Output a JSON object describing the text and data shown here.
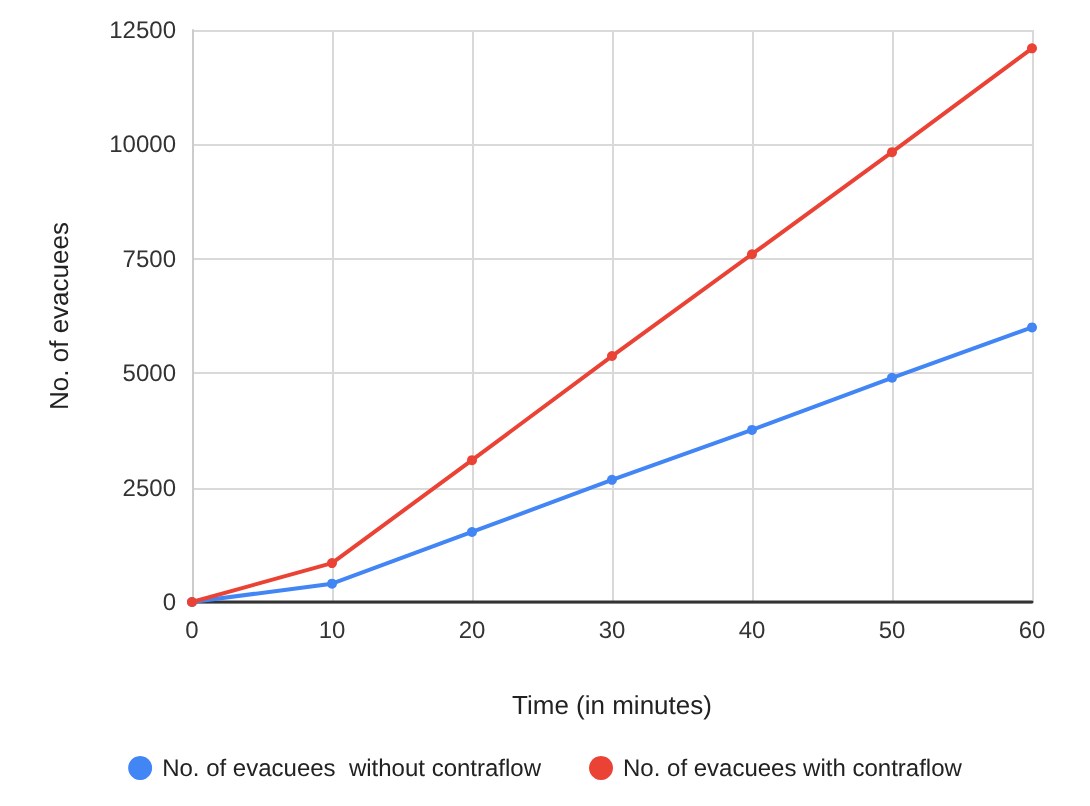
{
  "chart_data": {
    "type": "line",
    "xlabel": "Time (in minutes)",
    "ylabel": "No. of evacuees",
    "x": [
      0,
      10,
      20,
      30,
      40,
      50,
      60
    ],
    "series": [
      {
        "name": "No. of evacuees  without contraflow",
        "color": "#4285f4",
        "values": [
          0,
          400,
          1530,
          2670,
          3760,
          4900,
          6000
        ]
      },
      {
        "name": "No. of evacuees with contraflow",
        "color": "#ea4335",
        "values": [
          0,
          850,
          3100,
          5375,
          7600,
          9830,
          12100
        ]
      }
    ],
    "xlim": [
      0,
      60
    ],
    "xticks": [
      0,
      10,
      20,
      30,
      40,
      50,
      60
    ],
    "ylim": [
      0,
      12500
    ],
    "yticks": [
      0,
      2500,
      5000,
      7500,
      10000,
      12500
    ],
    "grid": true,
    "legend": "bottom",
    "marker": "circle",
    "line_style": "solid"
  }
}
